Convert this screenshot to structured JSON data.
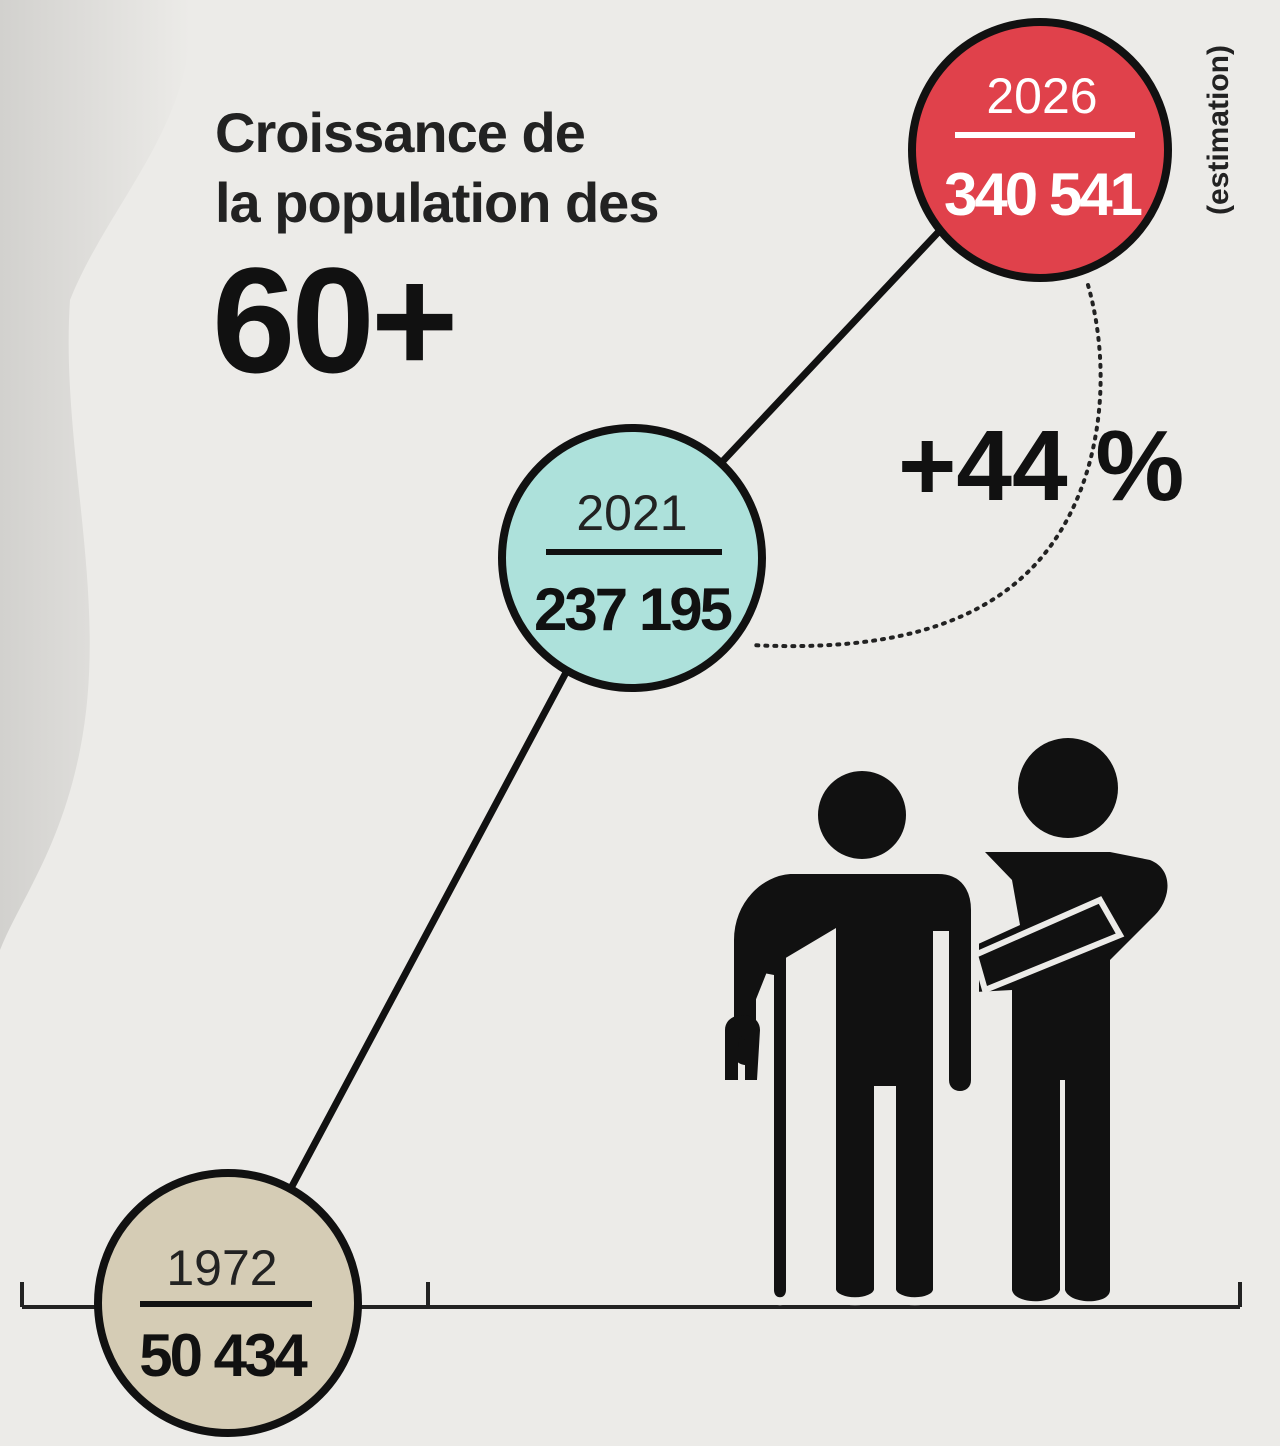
{
  "title": {
    "line1": "Croissance de",
    "line2": "la population des",
    "line3": "60+"
  },
  "points": [
    {
      "year": "1972",
      "value": "50 434"
    },
    {
      "year": "2021",
      "value": "237 195"
    },
    {
      "year": "2026",
      "value": "340 541",
      "note": "(estimation)"
    }
  ],
  "change": "+44 %"
}
